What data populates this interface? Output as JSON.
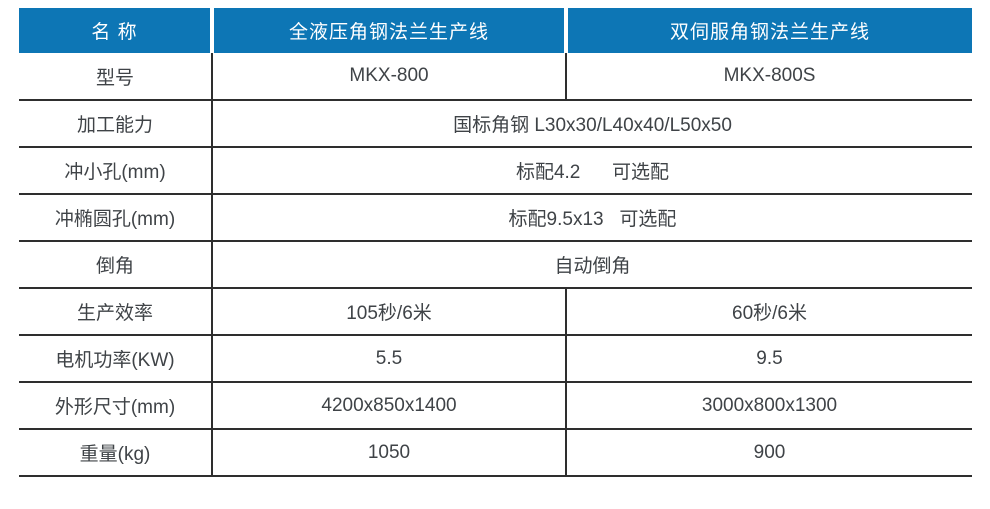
{
  "table": {
    "header": {
      "name_label": "名 称",
      "line1": "全液压角钢法兰生产线",
      "line2": "双伺服角钢法兰生产线"
    },
    "rows": [
      {
        "label": "型号",
        "merged": false,
        "left": "MKX-800",
        "right": "MKX-800S"
      },
      {
        "label": "加工能力",
        "merged": true,
        "value": "国标角钢 L30x30/L40x40/L50x50"
      },
      {
        "label": "冲小孔(mm)",
        "merged": true,
        "value": "标配4.2      可选配"
      },
      {
        "label": "冲椭圆孔(mm)",
        "merged": true,
        "value": "标配9.5x13   可选配"
      },
      {
        "label": "倒角",
        "merged": true,
        "value": "自动倒角"
      },
      {
        "label": "生产效率",
        "merged": false,
        "left": "105秒/6米",
        "right": "60秒/6米"
      },
      {
        "label": "电机功率(KW)",
        "merged": false,
        "left": "5.5",
        "right": "9.5"
      },
      {
        "label": "外形尺寸(mm)",
        "merged": false,
        "left": "4200x850x1400",
        "right": "3000x800x1300"
      },
      {
        "label": "重量(kg)",
        "merged": false,
        "left": "1050",
        "right": "900"
      }
    ],
    "colors": {
      "header_bg": "#0d76b5",
      "header_text": "#ffffff",
      "header_divider": "#ffffff",
      "body_text": "#3f4347",
      "border": "#2e2e2e",
      "background": "#ffffff"
    }
  }
}
